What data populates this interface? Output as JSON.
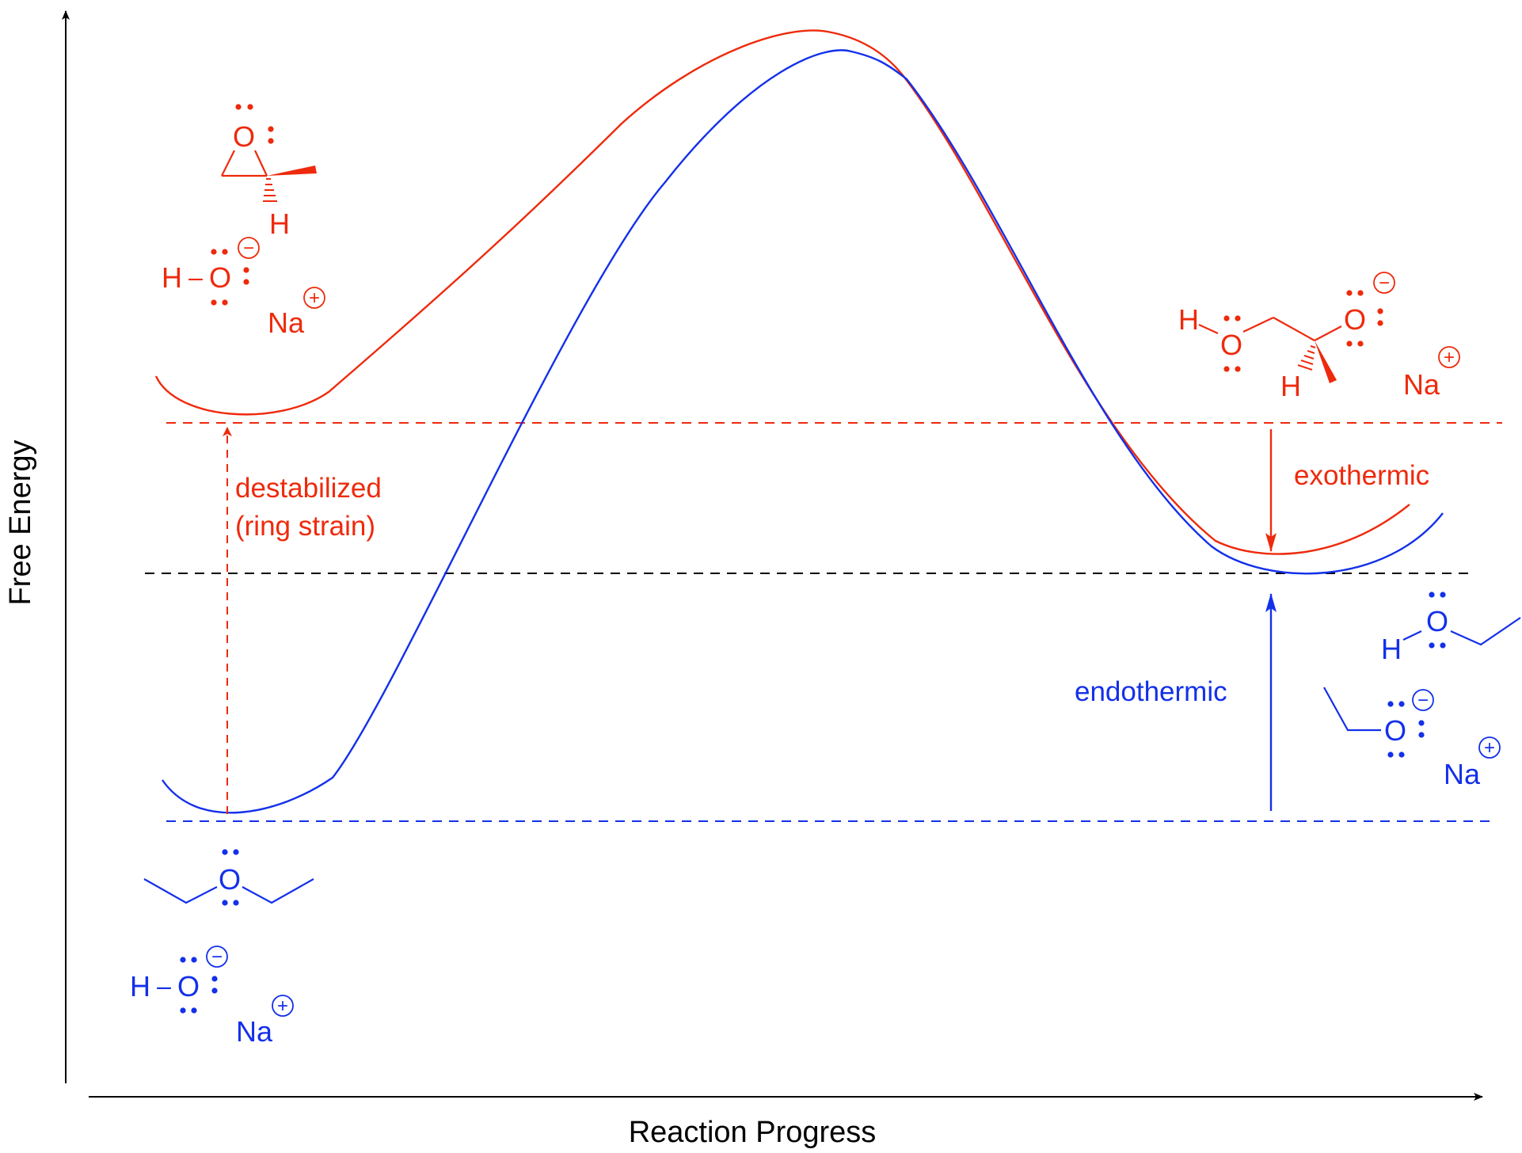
{
  "axes": {
    "x_label": "Reaction Progress",
    "y_label": "Free Energy"
  },
  "colors": {
    "epoxide": "#ee2a0c",
    "ether": "#1330ea",
    "axis": "#000000"
  },
  "annotations": {
    "destabilized_line1": "destabilized",
    "destabilized_line2": "(ring strain)",
    "exothermic": "exothermic",
    "endothermic": "endothermic"
  },
  "molecules": {
    "epoxide_reactant": {
      "atom_o": "O",
      "atom_h": "H"
    },
    "epoxide_hydroxide": {
      "atom_h": "H",
      "bond": "–",
      "atom_o": "O",
      "charge": "−",
      "counterion": "Na",
      "counter_charge": "+"
    },
    "epoxide_product": {
      "atom_h1": "H",
      "atom_o1": "O",
      "atom_h2": "H",
      "atom_o2": "O",
      "charge": "−",
      "counterion": "Na",
      "counter_charge": "+"
    },
    "ether_reactant": {
      "atom_o": "O"
    },
    "ether_hydroxide": {
      "atom_h": "H",
      "bond": "–",
      "atom_o": "O",
      "charge": "−",
      "counterion": "Na",
      "counter_charge": "+"
    },
    "ether_product_alcohol": {
      "atom_h": "H",
      "atom_o": "O"
    },
    "ether_product_alkoxide": {
      "atom_o": "O",
      "charge": "−",
      "counterion": "Na",
      "counter_charge": "+"
    }
  }
}
